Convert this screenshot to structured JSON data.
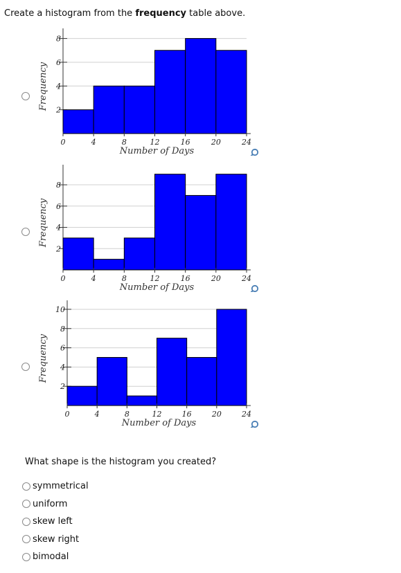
{
  "prompt": {
    "before": "Create a histogram from the ",
    "bold": "frequency",
    "after": " table above."
  },
  "question": "What shape is the histogram you created?",
  "answers": [
    "symmetrical",
    "uniform",
    "skew left",
    "skew right",
    "bimodal"
  ],
  "bar_color": "#0000ff",
  "icons": {
    "radio": "radio-button",
    "zoom": "magnifier-icon"
  },
  "chart_data": [
    {
      "type": "bar",
      "categories": [
        "0-4",
        "4-8",
        "8-12",
        "12-16",
        "16-20",
        "20-24"
      ],
      "bins": [
        0,
        4,
        8,
        12,
        16,
        20,
        24
      ],
      "values": [
        2,
        4,
        4,
        7,
        8,
        7
      ],
      "xlabel": "Number of Days",
      "ylabel": "Frequency",
      "xticks": [
        "0",
        "4",
        "8",
        "12",
        "16",
        "20",
        "24"
      ],
      "yticks": [
        "2",
        "4",
        "6",
        "8"
      ],
      "ylim": [
        0,
        8.5
      ],
      "grid": true
    },
    {
      "type": "bar",
      "categories": [
        "0-4",
        "4-8",
        "8-12",
        "12-16",
        "16-20",
        "20-24"
      ],
      "bins": [
        0,
        4,
        8,
        12,
        16,
        20,
        24
      ],
      "values": [
        3,
        1,
        3,
        9,
        7,
        9
      ],
      "xlabel": "Number of Days",
      "ylabel": "Frequency",
      "xticks": [
        "0",
        "4",
        "8",
        "12",
        "16",
        "20",
        "24"
      ],
      "yticks": [
        "2",
        "4",
        "6",
        "8"
      ],
      "ylim": [
        0,
        9.5
      ],
      "grid": true
    },
    {
      "type": "bar",
      "categories": [
        "0-4",
        "4-8",
        "8-12",
        "12-16",
        "16-20",
        "20-24"
      ],
      "bins": [
        0,
        4,
        8,
        12,
        16,
        20,
        24
      ],
      "values": [
        2,
        5,
        1,
        7,
        5,
        10
      ],
      "xlabel": "Number of Days",
      "ylabel": "Frequency",
      "xticks": [
        "0",
        "4",
        "8",
        "12",
        "16",
        "20",
        "24"
      ],
      "yticks": [
        "2",
        "4",
        "6",
        "8",
        "10"
      ],
      "ylim": [
        0,
        10.5
      ],
      "grid": true
    }
  ]
}
